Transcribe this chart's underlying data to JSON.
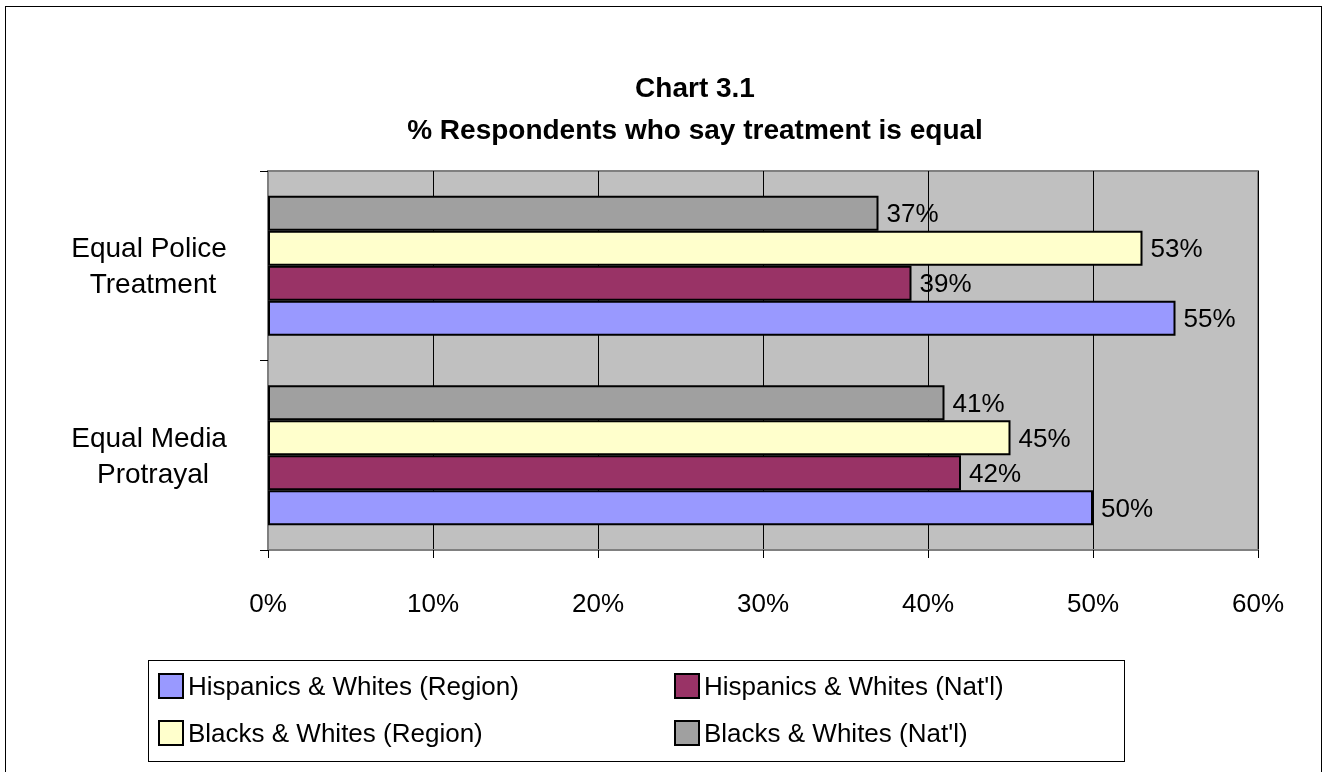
{
  "chart_data": {
    "type": "bar",
    "orientation": "horizontal",
    "title": "Chart 3.1",
    "subtitle": "% Respondents who say treatment is equal",
    "categories": [
      "Equal Police Treatment",
      "Equal Media Protrayal"
    ],
    "series": [
      {
        "name": "Hispanics & Whites (Region)",
        "color": "#9999ff",
        "values": [
          55,
          50
        ],
        "value_labels": [
          "55%",
          "50%"
        ]
      },
      {
        "name": "Hispanics & Whites (Nat'l)",
        "color": "#993366",
        "values": [
          39,
          42
        ],
        "value_labels": [
          "39%",
          "42%"
        ]
      },
      {
        "name": "Blacks & Whites (Region)",
        "color": "#ffffcc",
        "values": [
          53,
          45
        ],
        "value_labels": [
          "53%",
          "45%"
        ]
      },
      {
        "name": "Blacks & Whites (Nat'l)",
        "color": "#a0a0a0",
        "values": [
          37,
          41
        ],
        "value_labels": [
          "37%",
          "41%"
        ]
      }
    ],
    "xlim": [
      0,
      60
    ],
    "xticks": [
      {
        "value": 0,
        "label": "0%"
      },
      {
        "value": 10,
        "label": "10%"
      },
      {
        "value": 20,
        "label": "20%"
      },
      {
        "value": 30,
        "label": "30%"
      },
      {
        "value": 40,
        "label": "40%"
      },
      {
        "value": 50,
        "label": "50%"
      },
      {
        "value": 60,
        "label": "60%"
      }
    ],
    "grid": "x",
    "legend": "bottom"
  }
}
